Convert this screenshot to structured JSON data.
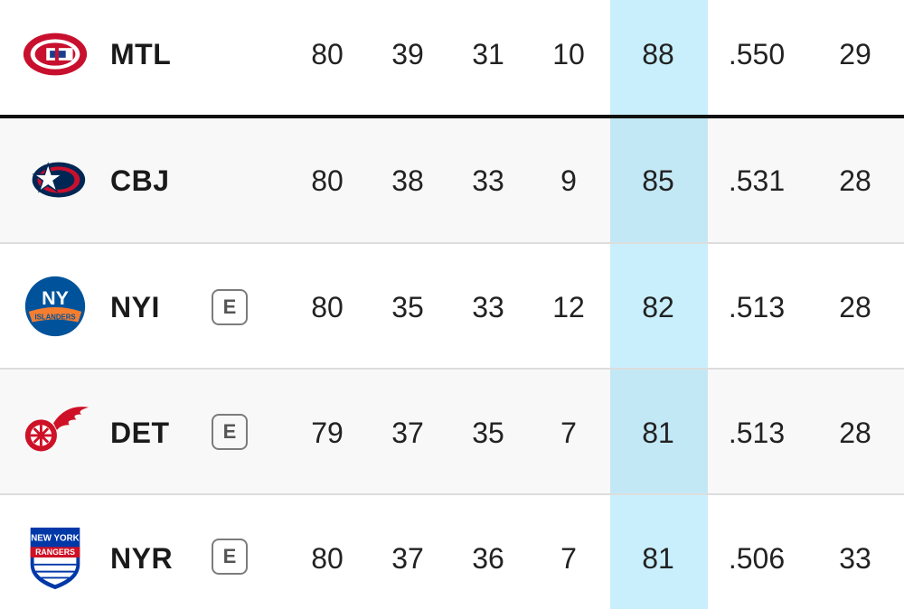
{
  "standings": {
    "rows": [
      {
        "team": "MTL",
        "logo": "canadiens-logo",
        "badge": "",
        "gp": "80",
        "w": "39",
        "l": "31",
        "otl": "10",
        "pts": "88",
        "pct": ".550",
        "rw": "29"
      },
      {
        "team": "CBJ",
        "logo": "blue-jackets-logo",
        "badge": "",
        "gp": "80",
        "w": "38",
        "l": "33",
        "otl": "9",
        "pts": "85",
        "pct": ".531",
        "rw": "28"
      },
      {
        "team": "NYI",
        "logo": "islanders-logo",
        "badge": "E",
        "gp": "80",
        "w": "35",
        "l": "33",
        "otl": "12",
        "pts": "82",
        "pct": ".513",
        "rw": "28"
      },
      {
        "team": "DET",
        "logo": "red-wings-logo",
        "badge": "E",
        "gp": "79",
        "w": "37",
        "l": "35",
        "otl": "7",
        "pts": "81",
        "pct": ".513",
        "rw": "28"
      },
      {
        "team": "NYR",
        "logo": "rangers-logo",
        "badge": "E",
        "gp": "80",
        "w": "37",
        "l": "36",
        "otl": "7",
        "pts": "81",
        "pct": ".506",
        "rw": "33"
      }
    ],
    "logo_texts": {
      "nyi": "NY",
      "nyi_sub": "ISLANDERS",
      "nyr_top": "NEW YORK",
      "nyr_sub": "RANGERS"
    },
    "colors": {
      "pts_highlight": "#c9effc",
      "cutoff_line": "#111111",
      "mtl_red": "#c8102e",
      "cbj_navy": "#002654",
      "nyi_orange": "#f47d30",
      "nyi_blue": "#00539b",
      "det_red": "#ce1126",
      "nyr_blue": "#0038a8"
    }
  }
}
